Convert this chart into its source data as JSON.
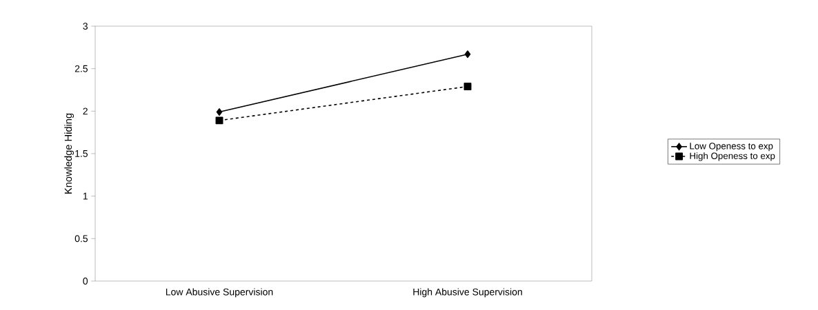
{
  "chart_data": {
    "type": "line",
    "ylabel": "Knowledge Hiding",
    "categories": [
      "Low Abusive Supervision",
      "High Abusive Supervision"
    ],
    "series": [
      {
        "name": "Low Openess to exp",
        "color": "#000000",
        "values": [
          1.99,
          2.67
        ],
        "marker": "diamond",
        "line_style": "solid"
      },
      {
        "name": "High Openess to exp",
        "color": "#000000",
        "values": [
          1.89,
          2.29
        ],
        "marker": "square",
        "line_style": "dashed"
      }
    ],
    "ylim": [
      0,
      3
    ],
    "yticks": [
      0,
      0.5,
      1,
      1.5,
      2,
      2.5,
      3
    ],
    "grid": false,
    "legend": "right"
  }
}
